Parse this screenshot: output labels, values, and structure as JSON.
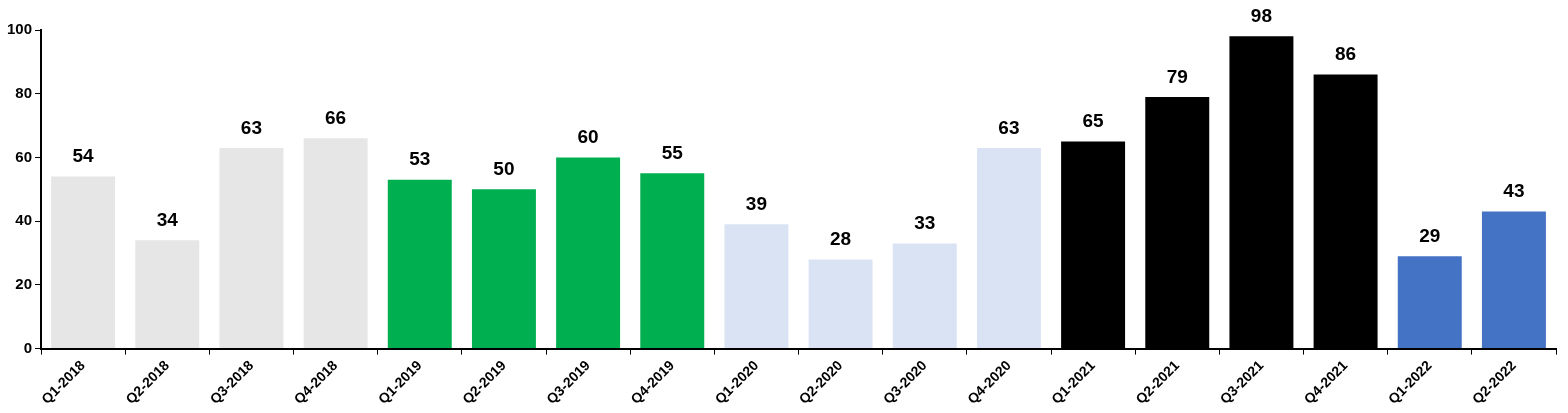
{
  "chart_data": {
    "type": "bar",
    "categories": [
      "Q1-2018",
      "Q2-2018",
      "Q3-2018",
      "Q4-2018",
      "Q1-2019",
      "Q2-2019",
      "Q3-2019",
      "Q4-2019",
      "Q1-2020",
      "Q2-2020",
      "Q3-2020",
      "Q4-2020",
      "Q1-2021",
      "Q2-2021",
      "Q3-2021",
      "Q4-2021",
      "Q1-2022",
      "Q2-2022"
    ],
    "values": [
      54,
      34,
      63,
      66,
      53,
      50,
      60,
      55,
      39,
      28,
      33,
      63,
      65,
      79,
      98,
      86,
      29,
      43
    ],
    "colors": [
      "#e7e6e6",
      "#e7e6e6",
      "#e7e6e6",
      "#e7e6e6",
      "#00b050",
      "#00b050",
      "#00b050",
      "#00b050",
      "#dae3f3",
      "#dae3f3",
      "#dae3f3",
      "#dae3f3",
      "#000000",
      "#000000",
      "#000000",
      "#000000",
      "#4472c4",
      "#4472c4"
    ],
    "ylim": [
      0,
      100
    ],
    "yticks": [
      0,
      20,
      40,
      60,
      80,
      100
    ],
    "grid": false,
    "data_labels": true
  }
}
